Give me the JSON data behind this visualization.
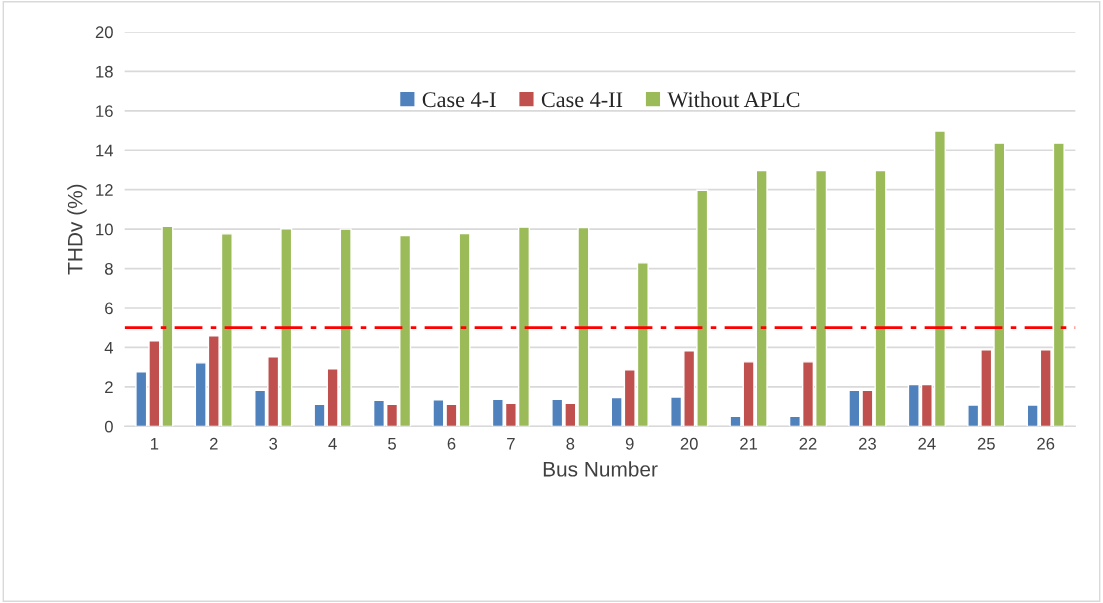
{
  "chart_data": {
    "type": "bar",
    "xlabel": "Bus Number",
    "ylabel": "THDv (%)",
    "categories": [
      "1",
      "2",
      "3",
      "4",
      "5",
      "6",
      "7",
      "8",
      "9",
      "20",
      "21",
      "22",
      "23",
      "24",
      "25",
      "26"
    ],
    "series": [
      {
        "name": "Case 4-I",
        "color": "#4f81bd",
        "values": [
          2.76,
          3.22,
          1.83,
          1.12,
          1.32,
          1.34,
          1.37,
          1.37,
          1.46,
          1.49,
          0.51,
          0.51,
          1.83,
          2.12,
          1.08,
          1.08
        ]
      },
      {
        "name": "Case 4-II",
        "color": "#c0504d",
        "values": [
          4.34,
          4.59,
          3.53,
          2.92,
          1.12,
          1.12,
          1.17,
          1.17,
          2.86,
          3.83,
          3.27,
          3.27,
          1.83,
          2.12,
          3.88,
          3.88
        ]
      },
      {
        "name": "Without APLC",
        "color": "#9bbb59",
        "values": [
          10.15,
          9.76,
          10.02,
          10.0,
          9.68,
          9.78,
          10.1,
          10.08,
          8.29,
          11.97,
          12.97,
          12.97,
          12.97,
          14.98,
          14.36,
          14.36
        ]
      }
    ],
    "ylim": [
      0,
      20
    ],
    "yticks": [
      0,
      2,
      4,
      6,
      8,
      10,
      12,
      14,
      16,
      18,
      20
    ],
    "grid": "y",
    "legend": "top",
    "ref_lines": [
      {
        "axis": "y",
        "value": 5,
        "color": "#ff0000",
        "line_style": "dashdot"
      }
    ]
  }
}
